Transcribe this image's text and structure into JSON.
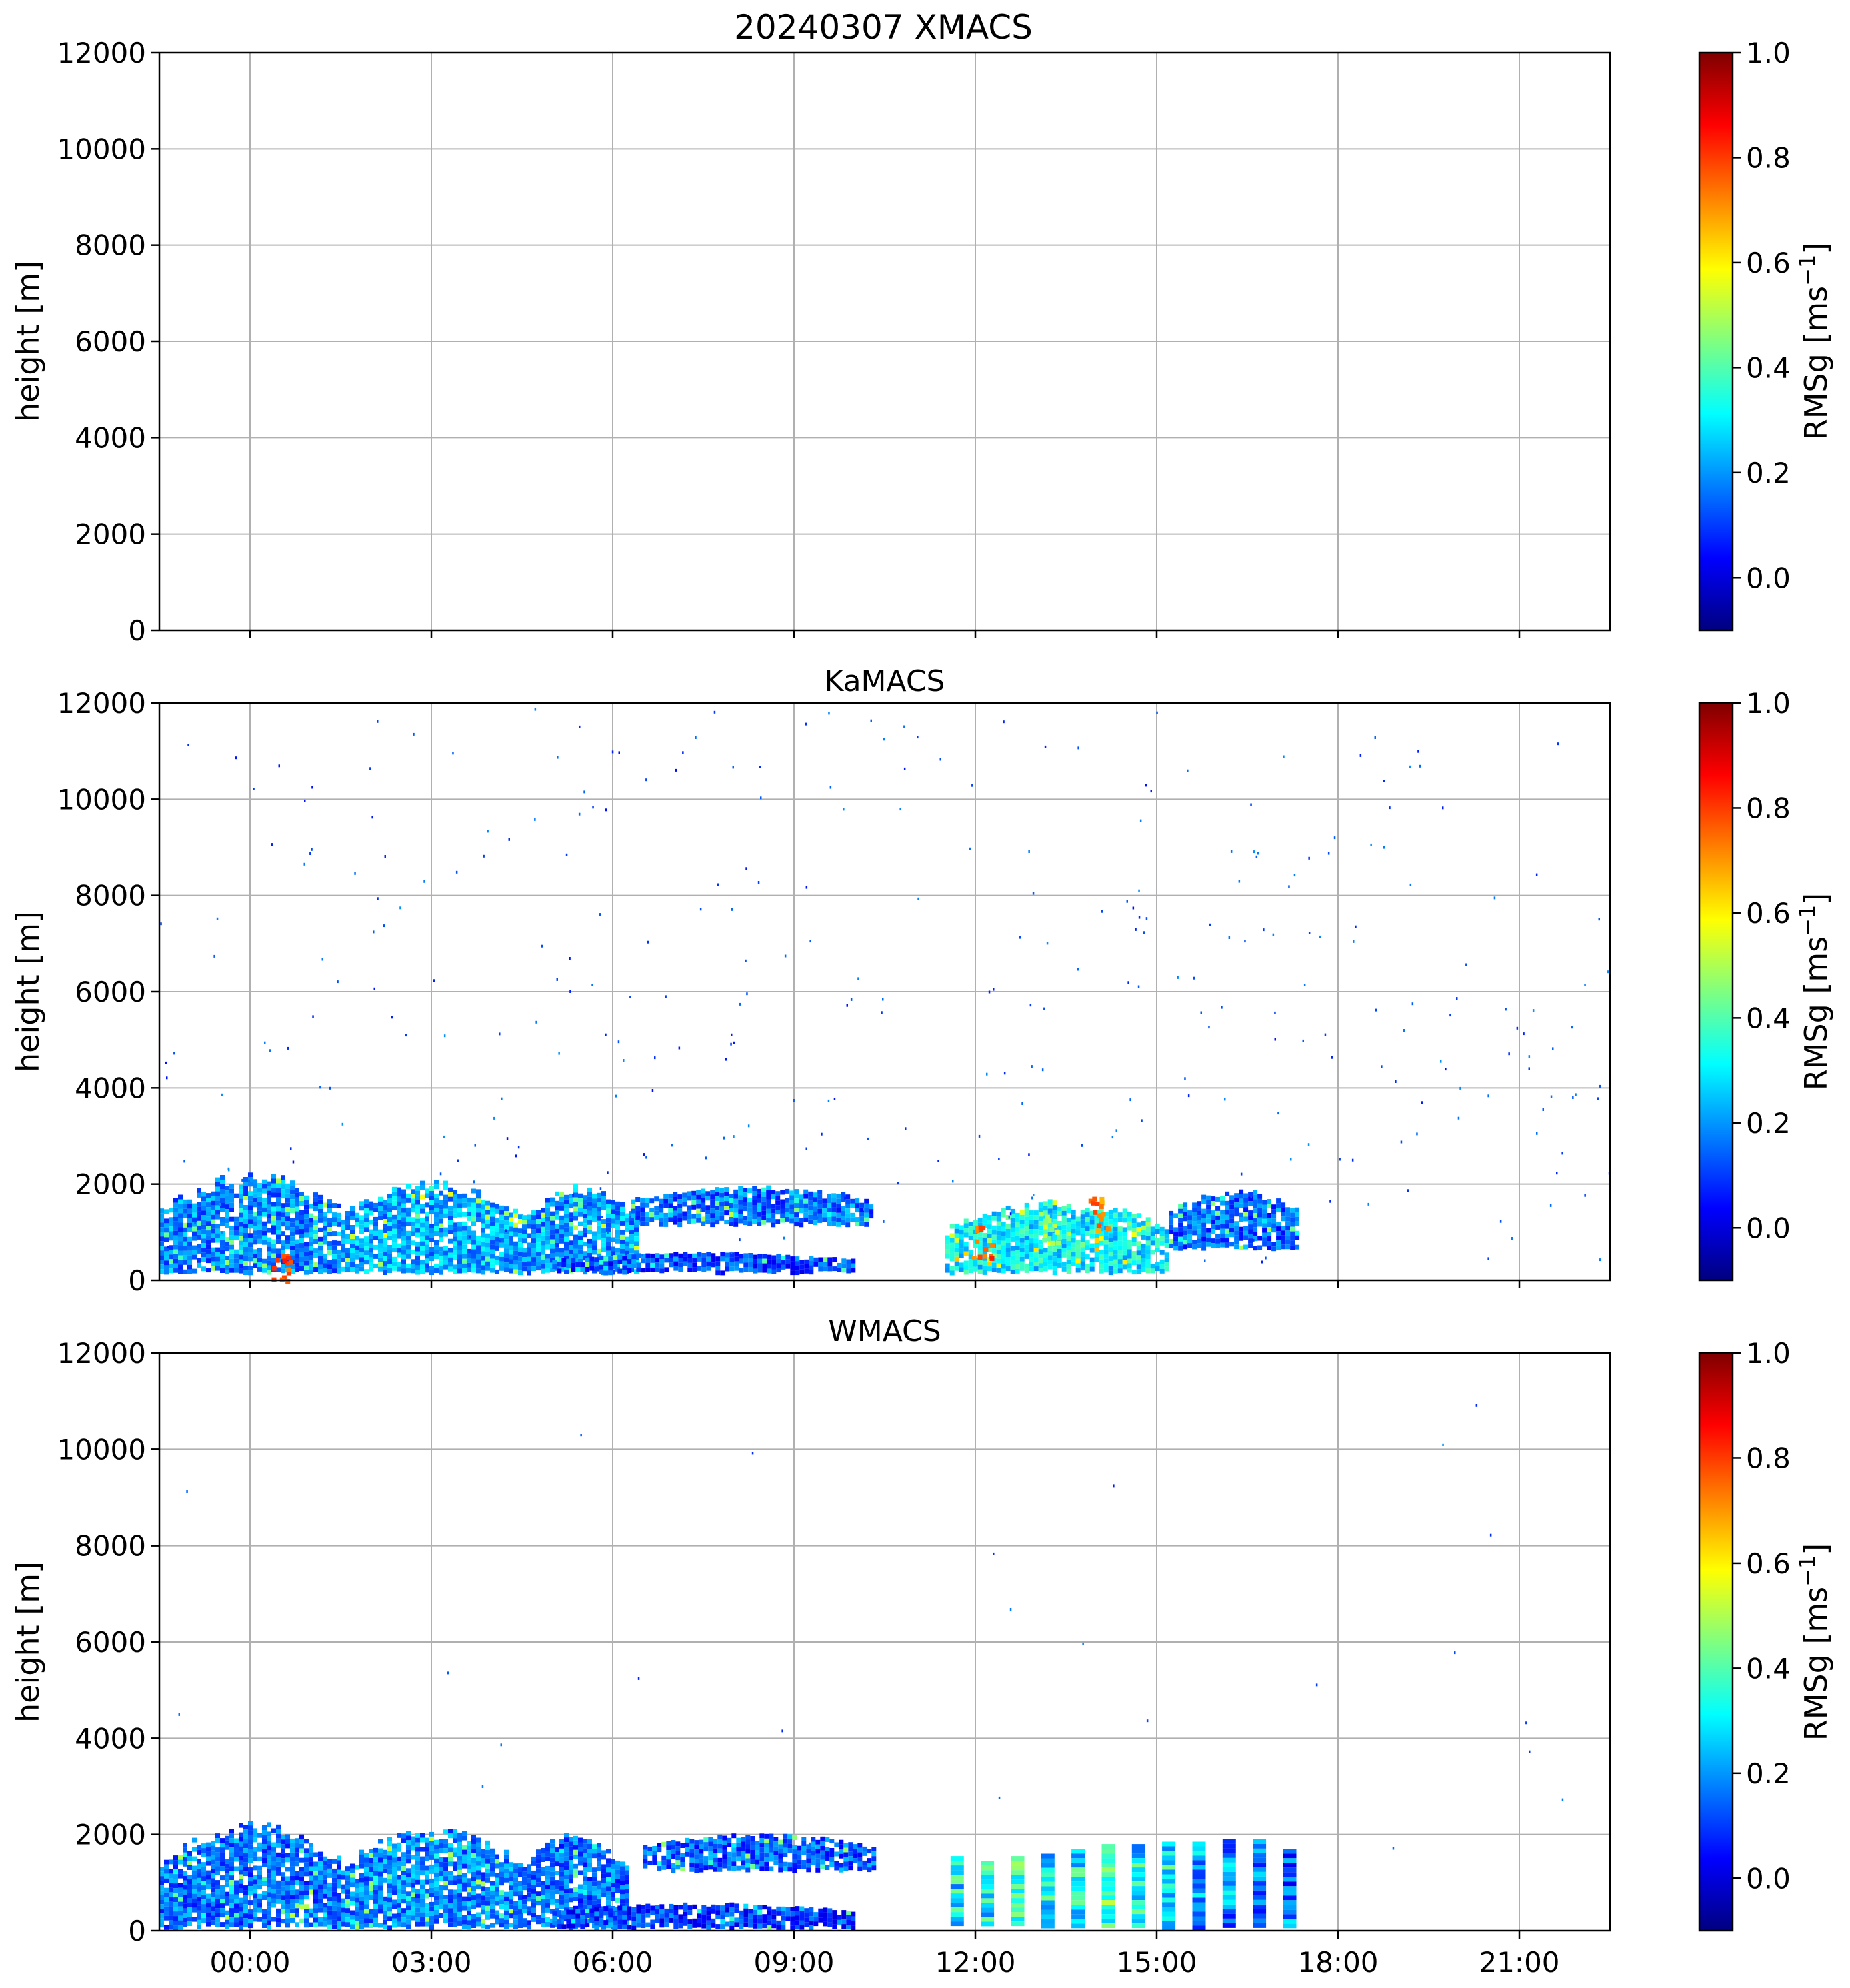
{
  "figure_title": "20240307 XMACS",
  "chart_data": [
    {
      "type": "heatmap",
      "title": "20240307 XMACS",
      "panel_key": "xmacs",
      "xlabel": "",
      "ylabel": "height [m]",
      "xlim_hours": [
        -1.5,
        22.5
      ],
      "ylim": [
        0,
        12000
      ],
      "y_ticks": [
        0,
        2000,
        4000,
        6000,
        8000,
        10000,
        12000
      ],
      "x_ticks_hours": [
        0,
        3,
        6,
        9,
        12,
        15,
        18,
        21
      ],
      "x_tick_labels": [
        "00:00",
        "03:00",
        "06:00",
        "09:00",
        "12:00",
        "15:00",
        "18:00",
        "21:00"
      ],
      "show_x_tick_labels": false,
      "grid": true,
      "echo_regions": [],
      "scatter_count": 0,
      "colorbar": {
        "label": "RMSg [ms",
        "label_exponent": "−1",
        "label_close": "]",
        "vmin": -0.1,
        "vmax": 1.0,
        "ticks": [
          0.0,
          0.2,
          0.4,
          0.6,
          0.8,
          1.0
        ],
        "tick_labels": [
          "0.0",
          "0.2",
          "0.4",
          "0.6",
          "0.8",
          "1.0"
        ],
        "colormap": "jet"
      }
    },
    {
      "type": "heatmap",
      "title": "KaMACS",
      "panel_key": "kamacs",
      "xlabel": "",
      "ylabel": "height [m]",
      "xlim_hours": [
        -1.5,
        22.5
      ],
      "ylim": [
        0,
        12000
      ],
      "y_ticks": [
        0,
        2000,
        4000,
        6000,
        8000,
        10000,
        12000
      ],
      "x_ticks_hours": [
        0,
        3,
        6,
        9,
        12,
        15,
        18,
        21
      ],
      "x_tick_labels": [
        "00:00",
        "03:00",
        "06:00",
        "09:00",
        "12:00",
        "15:00",
        "18:00",
        "21:00"
      ],
      "show_x_tick_labels": false,
      "grid": true,
      "echo_regions": [
        {
          "t_start": -1.5,
          "t_end": 1.5,
          "base_m": 200,
          "top_m": 2300,
          "mean_rmsg": 0.18
        },
        {
          "t_start": 1.5,
          "t_end": 4.5,
          "base_m": 200,
          "top_m": 2100,
          "mean_rmsg": 0.22
        },
        {
          "t_start": 4.5,
          "t_end": 6.4,
          "base_m": 200,
          "top_m": 2050,
          "mean_rmsg": 0.2
        },
        {
          "t_start": 6.3,
          "t_end": 10.3,
          "base_m": 1200,
          "top_m": 2000,
          "mean_rmsg": 0.16
        },
        {
          "t_start": 5.0,
          "t_end": 10.0,
          "base_m": 200,
          "top_m": 600,
          "mean_rmsg": 0.12
        },
        {
          "t_start": 11.5,
          "t_end": 15.2,
          "base_m": 200,
          "top_m": 1700,
          "mean_rmsg": 0.3
        },
        {
          "t_start": 15.2,
          "t_end": 17.3,
          "base_m": 700,
          "top_m": 1950,
          "mean_rmsg": 0.15
        }
      ],
      "hotspots": [
        {
          "t": 0.5,
          "h_m": 350,
          "rmsg": 0.85
        },
        {
          "t": 12.1,
          "h_m": 800,
          "rmsg": 0.85
        },
        {
          "t": 14.0,
          "h_m": 1400,
          "rmsg": 0.8
        },
        {
          "t": 13.2,
          "h_m": 1100,
          "rmsg": 0.55
        }
      ],
      "scatter_count": 330,
      "colorbar": {
        "label": "RMSg [ms",
        "label_exponent": "−1",
        "label_close": "]",
        "vmin": -0.1,
        "vmax": 1.0,
        "ticks": [
          0.0,
          0.2,
          0.4,
          0.6,
          0.8,
          1.0
        ],
        "tick_labels": [
          "0.0",
          "0.2",
          "0.4",
          "0.6",
          "0.8",
          "1.0"
        ],
        "colormap": "jet"
      }
    },
    {
      "type": "heatmap",
      "title": "WMACS",
      "panel_key": "wmacs",
      "xlabel": "",
      "ylabel": "height [m]",
      "xlim_hours": [
        -1.5,
        22.5
      ],
      "ylim": [
        0,
        12000
      ],
      "y_ticks": [
        0,
        2000,
        4000,
        6000,
        8000,
        10000,
        12000
      ],
      "x_ticks_hours": [
        0,
        3,
        6,
        9,
        12,
        15,
        18,
        21
      ],
      "x_tick_labels": [
        "00:00",
        "03:00",
        "06:00",
        "09:00",
        "12:00",
        "15:00",
        "18:00",
        "21:00"
      ],
      "show_x_tick_labels": true,
      "grid": true,
      "echo_regions": [
        {
          "t_start": -1.5,
          "t_end": 1.5,
          "base_m": 100,
          "top_m": 2300,
          "mean_rmsg": 0.16
        },
        {
          "t_start": 1.5,
          "t_end": 4.5,
          "base_m": 100,
          "top_m": 2200,
          "mean_rmsg": 0.18
        },
        {
          "t_start": 4.5,
          "t_end": 6.2,
          "base_m": 100,
          "top_m": 2100,
          "mean_rmsg": 0.15
        },
        {
          "t_start": 6.5,
          "t_end": 10.3,
          "base_m": 1300,
          "top_m": 2050,
          "mean_rmsg": 0.14
        },
        {
          "t_start": 5.0,
          "t_end": 10.0,
          "base_m": 100,
          "top_m": 600,
          "mean_rmsg": 0.1
        }
      ],
      "stripes": [
        {
          "t": 11.7,
          "top_m": 1550,
          "rmsg": 0.3
        },
        {
          "t": 12.2,
          "top_m": 1450,
          "rmsg": 0.3
        },
        {
          "t": 12.7,
          "top_m": 1550,
          "rmsg": 0.35
        },
        {
          "t": 13.2,
          "top_m": 1600,
          "rmsg": 0.3
        },
        {
          "t": 13.7,
          "top_m": 1700,
          "rmsg": 0.3
        },
        {
          "t": 14.2,
          "top_m": 1800,
          "rmsg": 0.4
        },
        {
          "t": 14.7,
          "top_m": 1800,
          "rmsg": 0.3
        },
        {
          "t": 15.2,
          "top_m": 1850,
          "rmsg": 0.3
        },
        {
          "t": 15.7,
          "top_m": 1850,
          "rmsg": 0.2
        },
        {
          "t": 16.2,
          "top_m": 1900,
          "rmsg": 0.2
        },
        {
          "t": 16.7,
          "top_m": 1900,
          "rmsg": 0.15
        },
        {
          "t": 17.2,
          "top_m": 1700,
          "rmsg": 0.15
        }
      ],
      "scatter_count": 25,
      "colorbar": {
        "label": "RMSg [ms",
        "label_exponent": "−1",
        "label_close": "]",
        "vmin": -0.1,
        "vmax": 1.0,
        "ticks": [
          0.0,
          0.2,
          0.4,
          0.6,
          0.8,
          1.0
        ],
        "tick_labels": [
          "0.0",
          "0.2",
          "0.4",
          "0.6",
          "0.8",
          "1.0"
        ],
        "colormap": "jet"
      }
    }
  ]
}
